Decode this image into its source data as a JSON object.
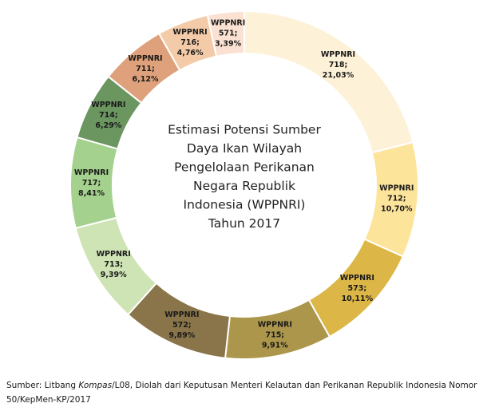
{
  "chart_data": {
    "type": "pie",
    "title_lines": [
      "Estimasi Potensi Sumber",
      "Daya Ikan Wilayah",
      "Pengelolaan Perikanan",
      "Negara Republik",
      "Indonesia (WPPNRI)",
      "Tahun 2017"
    ],
    "slices": [
      {
        "label": "WPPNRI",
        "code": "718;",
        "pct": "21,03%",
        "value": 21.03,
        "color": "#fdf1d7"
      },
      {
        "label": "WPPNRI",
        "code": "712;",
        "pct": "10,70%",
        "value": 10.7,
        "color": "#fde49b"
      },
      {
        "label": "WPPNRI",
        "code": "573;",
        "pct": "10,11%",
        "value": 10.11,
        "color": "#dcb646"
      },
      {
        "label": "WPPNRI",
        "code": "715;",
        "pct": "9,91%",
        "value": 9.91,
        "color": "#ab964b"
      },
      {
        "label": "WPPNRI",
        "code": "572;",
        "pct": "9,89%",
        "value": 9.89,
        "color": "#897549"
      },
      {
        "label": "WPPNRI",
        "code": "713;",
        "pct": "9,39%",
        "value": 9.39,
        "color": "#cfe4b5"
      },
      {
        "label": "WPPNRI",
        "code": "717;",
        "pct": "8,41%",
        "value": 8.41,
        "color": "#a4d18d"
      },
      {
        "label": "WPPNRI",
        "code": "714;",
        "pct": "6,29%",
        "value": 6.29,
        "color": "#6b9660"
      },
      {
        "label": "WPPNRI",
        "code": "711;",
        "pct": "6,12%",
        "value": 6.12,
        "color": "#dea17b"
      },
      {
        "label": "WPPNRI",
        "code": "716;",
        "pct": "4,76%",
        "value": 4.76,
        "color": "#f3cba9"
      },
      {
        "label": "WPPNRI",
        "code": "571;",
        "pct": "3,39%",
        "value": 3.39,
        "color": "#fae1d1"
      }
    ]
  },
  "source": {
    "prefix": "Sumber: Litbang ",
    "italic": "Kompas",
    "suffix": "/L08, Diolah dari Keputusan Menteri Kelautan dan Perikanan Republik Indonesia Nomor 50/KepMen-KP/2017"
  }
}
